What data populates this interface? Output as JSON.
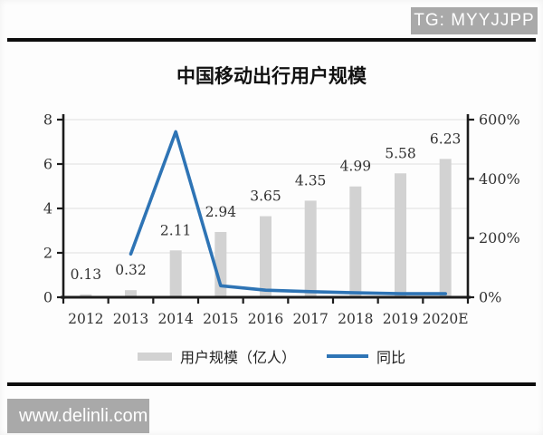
{
  "watermarks": {
    "top": "TG: MYYJJPP",
    "bottom": "www.delinli.com"
  },
  "chart_data": {
    "type": "bar",
    "title": "中国移动出行用户规模",
    "categories": [
      "2012",
      "2013",
      "2014",
      "2015",
      "2016",
      "2017",
      "2018",
      "2019",
      "2020E"
    ],
    "series": [
      {
        "name": "用户规模（亿人）",
        "type": "bar",
        "axis": "left",
        "color": "#d2d2d2",
        "values": [
          0.13,
          0.32,
          2.11,
          2.94,
          3.65,
          4.35,
          4.99,
          5.58,
          6.23
        ],
        "labels": [
          "0.13",
          "0.32",
          "2.11",
          "2.94",
          "3.65",
          "4.35",
          "4.99",
          "5.58",
          "6.23"
        ]
      },
      {
        "name": "同比",
        "type": "line",
        "axis": "right",
        "color": "#2e74b5",
        "values": [
          null,
          146,
          559,
          39,
          24,
          19,
          15,
          12,
          12
        ]
      }
    ],
    "left_axis": {
      "range": [
        0,
        8
      ],
      "ticks": [
        0,
        2,
        4,
        6,
        8
      ]
    },
    "right_axis": {
      "range": [
        0,
        600
      ],
      "tick_values": [
        0,
        200,
        400,
        600
      ],
      "tick_labels": [
        "0%",
        "200%",
        "400%",
        "600%"
      ]
    },
    "grid": true,
    "legend_position": "bottom"
  }
}
